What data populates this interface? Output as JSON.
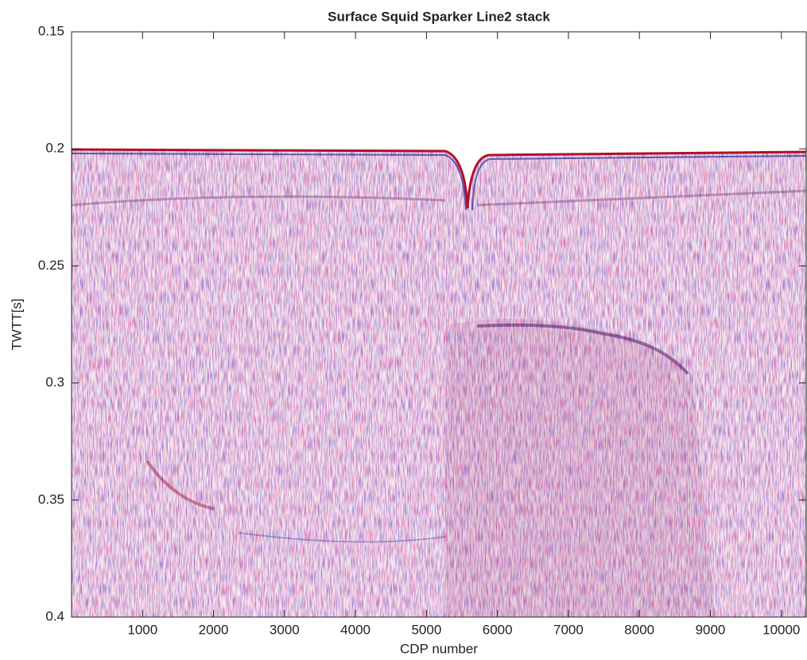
{
  "chart_data": {
    "type": "seismic-image",
    "title": "Surface Squid Sparker Line2 stack",
    "x_label": "CDP number",
    "y_label": "TWTT[s]",
    "xlim": [
      0,
      10350
    ],
    "xticks": [
      1000,
      2000,
      3000,
      4000,
      5000,
      6000,
      7000,
      8000,
      9000,
      10000
    ],
    "ylim": [
      0.15,
      0.4
    ],
    "yticks": [
      0.15,
      0.2,
      0.25,
      0.3,
      0.35,
      0.4
    ],
    "y_reversed": true
  }
}
